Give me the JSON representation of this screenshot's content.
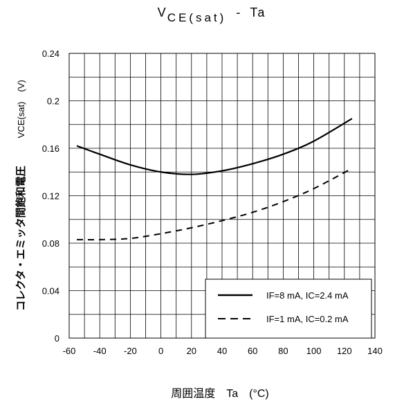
{
  "chart_data": {
    "type": "line",
    "title": {
      "main": "V",
      "subscript": "CE(sat)",
      "separator": "-",
      "suffix": "Ta"
    },
    "xlabel": "周囲温度　Ta　(°C)",
    "ylabel": {
      "jp": "コレクタ・エミッタ間飽和電圧",
      "symbol": "VCE(sat)",
      "unit": "(V)"
    },
    "xlim": [
      -60,
      140
    ],
    "ylim": [
      0,
      0.24
    ],
    "x_ticks": [
      "-60",
      "-40",
      "-20",
      "0",
      "20",
      "40",
      "60",
      "80",
      "100",
      "120",
      "140"
    ],
    "y_ticks": [
      "0",
      "0.04",
      "0.08",
      "0.12",
      "0.16",
      "0.2",
      "0.24"
    ],
    "grid": true,
    "legend_position": "bottom-right",
    "series": [
      {
        "name": "IF=8 mA, IC=2.4 mA",
        "line_style": "solid",
        "color": "#000000",
        "x": [
          -55,
          -40,
          -20,
          0,
          20,
          40,
          60,
          80,
          100,
          125
        ],
        "y": [
          0.162,
          0.155,
          0.146,
          0.14,
          0.138,
          0.141,
          0.147,
          0.155,
          0.166,
          0.185
        ]
      },
      {
        "name": "IF=1 mA, IC=0.2 mA",
        "line_style": "dashed",
        "color": "#000000",
        "x": [
          -55,
          -40,
          -20,
          0,
          20,
          40,
          60,
          80,
          100,
          125
        ],
        "y": [
          0.083,
          0.083,
          0.084,
          0.088,
          0.093,
          0.099,
          0.106,
          0.115,
          0.126,
          0.143
        ]
      }
    ]
  }
}
